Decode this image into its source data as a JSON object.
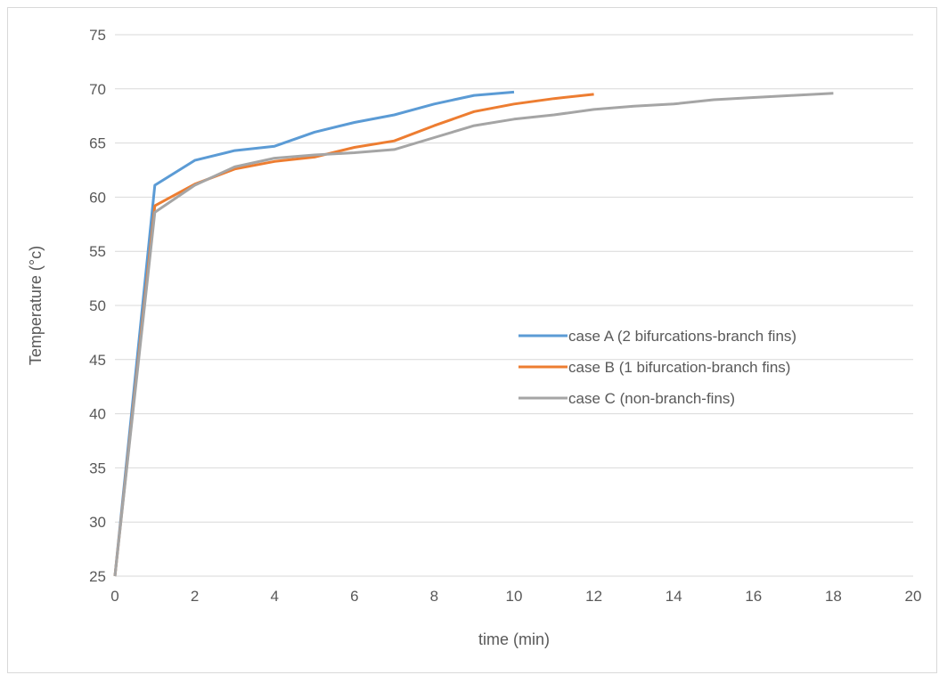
{
  "chart_data": {
    "type": "line",
    "title": "",
    "xlabel": "time (min)",
    "ylabel": "Temperature (°c)",
    "xlim": [
      0,
      20
    ],
    "ylim": [
      25,
      75
    ],
    "xticks": [
      0,
      2,
      4,
      6,
      8,
      10,
      12,
      14,
      16,
      18,
      20
    ],
    "yticks": [
      25,
      30,
      35,
      40,
      45,
      50,
      55,
      60,
      65,
      70,
      75
    ],
    "grid": "horizontal",
    "legend_position": "right",
    "series": [
      {
        "name": "case A (2 bifurcations-branch fins)",
        "color": "#5B9BD5",
        "x": [
          0,
          1,
          2,
          3,
          4,
          5,
          6,
          7,
          8,
          9,
          10
        ],
        "y": [
          25,
          61.1,
          63.4,
          64.3,
          64.7,
          66.0,
          66.9,
          67.6,
          68.6,
          69.4,
          69.7
        ]
      },
      {
        "name": "case B (1 bifurcation-branch fins)",
        "color": "#ED7D31",
        "x": [
          0,
          1,
          2,
          3,
          4,
          5,
          6,
          7,
          8,
          9,
          10,
          11,
          12
        ],
        "y": [
          25,
          59.2,
          61.2,
          62.6,
          63.3,
          63.7,
          64.6,
          65.2,
          66.6,
          67.9,
          68.6,
          69.1,
          69.5
        ]
      },
      {
        "name": "case C (non-branch-fins)",
        "color": "#A5A5A5",
        "x": [
          0,
          1,
          2,
          3,
          4,
          5,
          6,
          7,
          8,
          9,
          10,
          11,
          12,
          13,
          14,
          15,
          16,
          17,
          18
        ],
        "y": [
          25,
          58.6,
          61.1,
          62.8,
          63.6,
          63.9,
          64.1,
          64.4,
          65.5,
          66.6,
          67.2,
          67.6,
          68.1,
          68.4,
          68.6,
          69.0,
          69.2,
          69.4,
          69.6
        ]
      }
    ]
  }
}
